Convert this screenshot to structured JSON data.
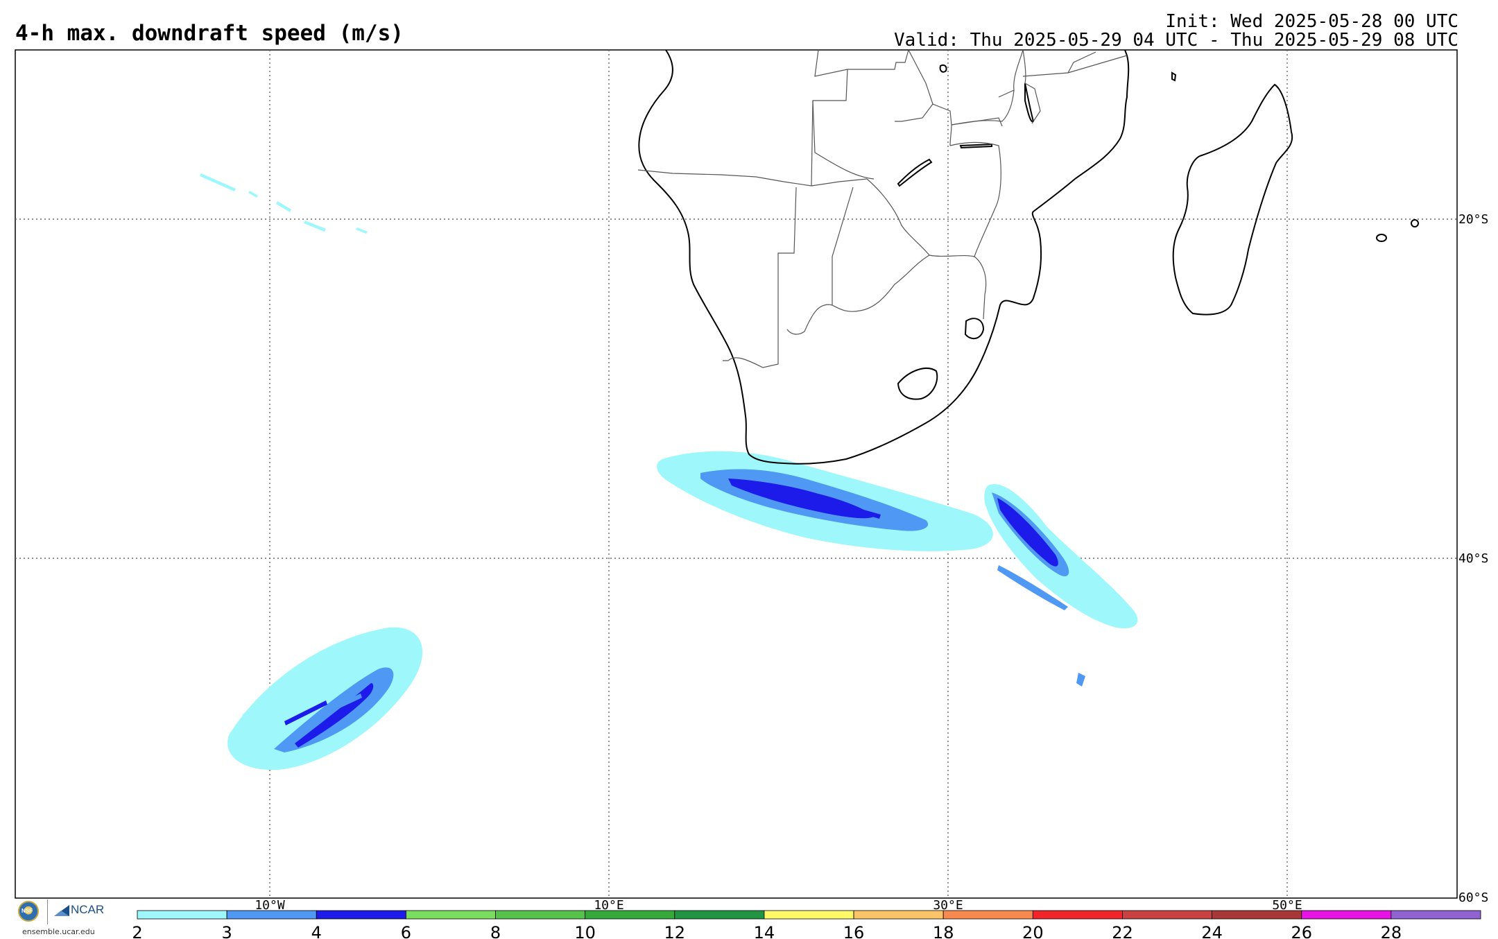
{
  "title": "4-h max. downdraft speed (m/s)",
  "init_text": "Init: Wed 2025-05-28 00 UTC",
  "valid_text": "Valid: Thu 2025-05-29 04 UTC - Thu 2025-05-29 08 UTC",
  "map": {
    "lat_labels": [
      "20°S",
      "40°S",
      "60°S"
    ],
    "lon_labels": [
      "10°W",
      "10°E",
      "30°E",
      "50°E"
    ]
  },
  "colorbar": {
    "colors": [
      "#9ef8fb",
      "#4f98f4",
      "#1d1bea",
      "#7bdd5f",
      "#55c24a",
      "#36a93b",
      "#229543",
      "#fdf967",
      "#fcc469",
      "#f88a4f",
      "#f2262a",
      "#c94141",
      "#a83737",
      "#e615e6",
      "#9062d2"
    ],
    "labels": [
      "2",
      "3",
      "4",
      "6",
      "8",
      "10",
      "12",
      "14",
      "16",
      "18",
      "20",
      "22",
      "24",
      "26",
      "28"
    ]
  },
  "logos": {
    "nsf": "NSF",
    "ncar": "NCAR",
    "url": "ensemble.ucar.edu"
  }
}
